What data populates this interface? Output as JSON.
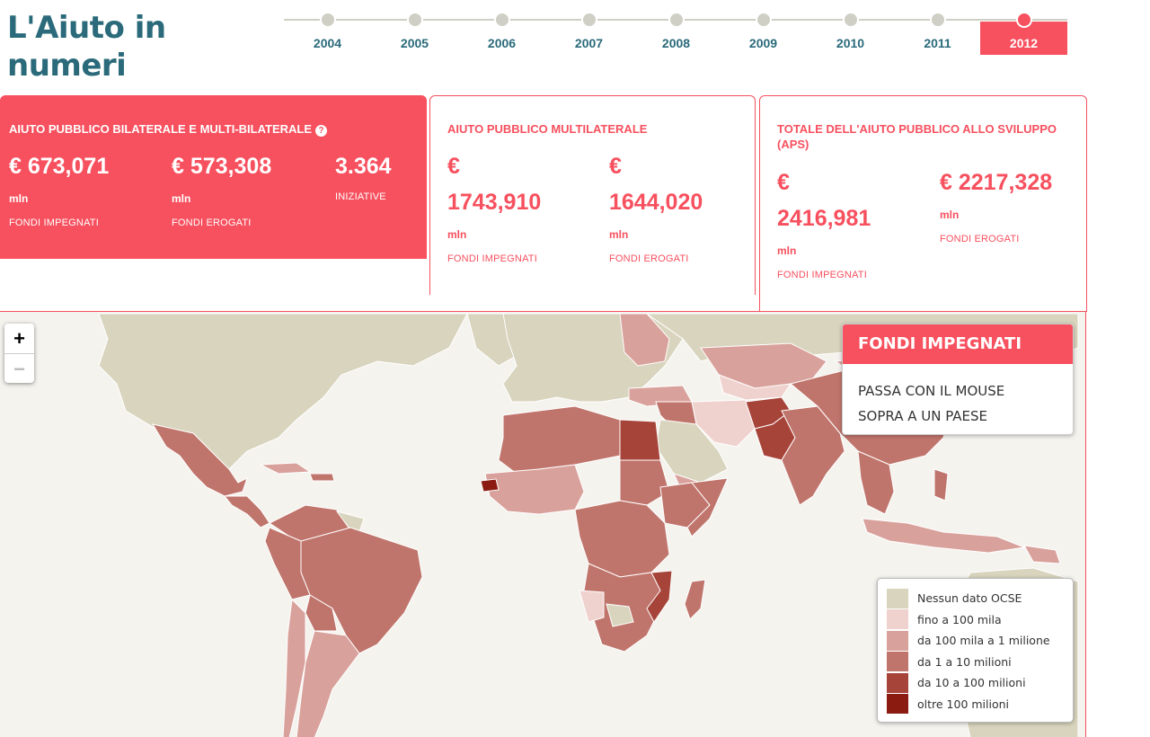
{
  "header": {
    "title": "L'Aiuto in numeri"
  },
  "timeline": {
    "years": [
      "2004",
      "2005",
      "2006",
      "2007",
      "2008",
      "2009",
      "2010",
      "2011",
      "2012"
    ],
    "selected": "2012"
  },
  "cards": [
    {
      "title": "AIUTO PUBBLICO BILATERALE E MULTI-BILATERALE",
      "stats": [
        {
          "value": "€ 673,071",
          "unit": "mln",
          "caption": "FONDI IMPEGNATI"
        },
        {
          "value": "€ 573,308",
          "unit": "mln",
          "caption": "FONDI EROGATI"
        },
        {
          "value": "3.364",
          "unit": "",
          "caption": "INIZIATIVE"
        }
      ]
    },
    {
      "title": "AIUTO PUBBLICO MULTILATERALE",
      "stats": [
        {
          "value_line1": "€",
          "value_line2": "1743,910",
          "unit": "mln",
          "caption": "FONDI IMPEGNATI"
        },
        {
          "value_line1": "€",
          "value_line2": "1644,020",
          "unit": "mln",
          "caption": "FONDI EROGATI"
        }
      ]
    },
    {
      "title_line1": "TOTALE DELL'AIUTO PUBBLICO ALLO SVILUPPO",
      "title_line2": "(APS)",
      "stats": [
        {
          "value_line1": "€",
          "value_line2": "2416,981",
          "unit": "mln",
          "caption": "FONDI IMPEGNATI"
        },
        {
          "value": "€ 2217,328",
          "unit": "mln",
          "caption": "FONDI EROGATI"
        }
      ]
    }
  ],
  "map": {
    "zoom_in": "+",
    "zoom_out": "−",
    "info": {
      "title": "FONDI IMPEGNATI",
      "line1": "PASSA CON IL MOUSE",
      "line2": "SOPRA A UN PAESE"
    },
    "legend": [
      {
        "label": "Nessun dato OCSE",
        "color": "#d8d4bd"
      },
      {
        "label": "fino a 100 mila",
        "color": "#efd2cd"
      },
      {
        "label": "da 100 mila a 1 milione",
        "color": "#d9a19b"
      },
      {
        "label": "da 1 a 10 milioni",
        "color": "#c0756c"
      },
      {
        "label": "da 10 a 100 milioni",
        "color": "#a7443a"
      },
      {
        "label": "oltre 100 milioni",
        "color": "#8b1a10"
      }
    ]
  },
  "colors": {
    "accent": "#f7505e",
    "title": "#2a6a7a",
    "ocean": "#f4f3ee",
    "timeline_dot": "#cfcfc5"
  }
}
